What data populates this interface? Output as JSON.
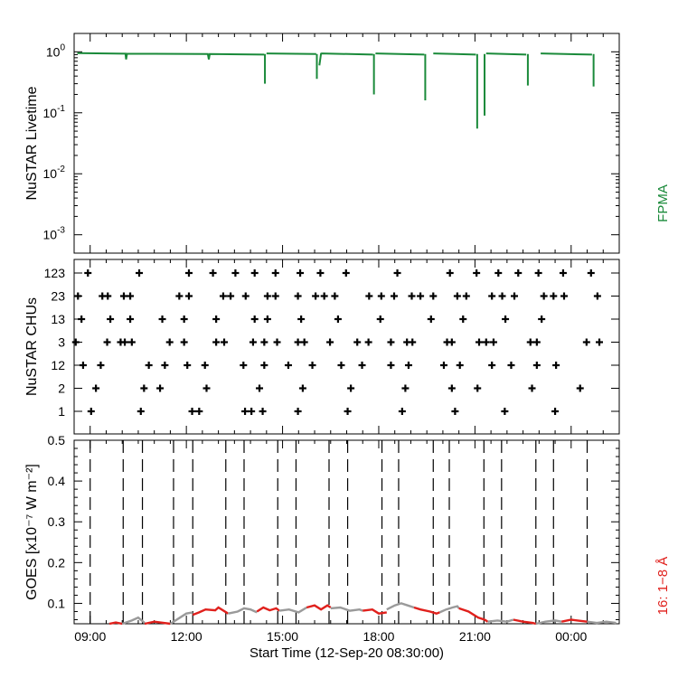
{
  "chart_data": [
    {
      "type": "line",
      "panel": "livetime",
      "ylabel": "NuSTAR Livetime",
      "yscale": "log",
      "ylim": [
        0.0005,
        2.0
      ],
      "ytick_values": [
        1,
        0.1,
        0.01,
        0.001
      ],
      "ytick_labels": [
        {
          "base": "10",
          "exp": "0"
        },
        {
          "base": "10",
          "exp": "-1"
        },
        {
          "base": "10",
          "exp": "-2"
        },
        {
          "base": "10",
          "exp": "-3"
        }
      ],
      "legend": "FPMA",
      "color": "#1a8a3a",
      "series": [
        {
          "x": [
            8.6,
            10.1,
            10.12,
            10.15,
            12.67,
            12.7,
            12.73,
            14.43
          ],
          "y": [
            0.95,
            0.93,
            0.75,
            0.93,
            0.92,
            0.75,
            0.92,
            0.9
          ]
        },
        {
          "x": [
            14.45
          ],
          "y": [
            0.3
          ]
        },
        {
          "x": [
            14.5,
            16.05
          ],
          "y": [
            0.94,
            0.92
          ]
        },
        {
          "x": [
            16.07
          ],
          "y": [
            0.36
          ]
        },
        {
          "x": [
            16.15,
            16.2,
            16.22,
            17.82
          ],
          "y": [
            0.6,
            0.93,
            0.94,
            0.9
          ]
        },
        {
          "x": [
            17.85
          ],
          "y": [
            0.2
          ]
        },
        {
          "x": [
            17.9,
            19.42
          ],
          "y": [
            0.94,
            0.9
          ]
        },
        {
          "x": [
            19.45
          ],
          "y": [
            0.16
          ]
        },
        {
          "x": [
            19.7,
            21.03
          ],
          "y": [
            0.94,
            0.9
          ]
        },
        {
          "x": [
            21.07
          ],
          "y": [
            0.055
          ]
        },
        {
          "x": [
            21.3
          ],
          "y": [
            0.09
          ]
        },
        {
          "x": [
            21.35,
            22.6
          ],
          "y": [
            0.94,
            0.9
          ]
        },
        {
          "x": [
            22.65
          ],
          "y": [
            0.28
          ]
        },
        {
          "x": [
            23.05,
            24.65
          ],
          "y": [
            0.94,
            0.9
          ]
        },
        {
          "x": [
            24.7
          ],
          "y": [
            0.27
          ]
        }
      ]
    },
    {
      "type": "scatter",
      "panel": "chus",
      "ylabel": "NuSTAR CHUs",
      "categories": [
        "1",
        "2",
        "12",
        "3",
        "13",
        "23",
        "123"
      ],
      "series": [
        {
          "name": "123",
          "x": [
            8.93,
            10.53,
            12.08,
            12.83,
            13.53,
            14.13,
            14.78,
            15.55,
            16.18,
            16.98,
            18.58,
            20.22,
            21.05,
            21.73,
            22.35,
            22.98,
            23.75,
            24.62
          ]
        },
        {
          "name": "23",
          "x": [
            8.62,
            9.38,
            9.55,
            10.05,
            10.25,
            11.78,
            12.08,
            13.15,
            13.38,
            13.85,
            14.53,
            14.78,
            15.48,
            16.03,
            16.3,
            16.63,
            17.7,
            18.08,
            18.48,
            19.03,
            19.3,
            19.7,
            20.45,
            20.73,
            21.53,
            21.85,
            22.23,
            23.15,
            23.45,
            23.78,
            24.82
          ]
        },
        {
          "name": "13",
          "x": [
            8.73,
            9.63,
            10.25,
            11.25,
            11.93,
            12.93,
            14.13,
            14.53,
            15.58,
            16.73,
            18.05,
            19.63,
            20.63,
            21.95,
            23.08
          ]
        },
        {
          "name": "3",
          "x": [
            8.55,
            9.53,
            9.95,
            10.08,
            10.3,
            11.48,
            11.93,
            12.93,
            13.18,
            14.08,
            14.43,
            14.83,
            15.48,
            15.68,
            16.48,
            17.33,
            17.68,
            18.38,
            18.88,
            19.05,
            20.13,
            20.28,
            21.13,
            21.35,
            21.58,
            22.73,
            22.93,
            24.48,
            24.88
          ]
        },
        {
          "name": "12",
          "x": [
            8.78,
            9.33,
            10.83,
            11.33,
            12.03,
            12.58,
            13.78,
            14.43,
            15.18,
            15.93,
            16.83,
            17.48,
            18.38,
            18.93,
            20.03,
            20.53,
            21.53,
            22.13,
            22.93,
            23.53
          ]
        },
        {
          "name": "2",
          "x": [
            9.18,
            10.68,
            11.18,
            12.63,
            14.28,
            15.63,
            17.13,
            18.83,
            20.28,
            21.08,
            22.78,
            24.28
          ]
        },
        {
          "name": "1",
          "x": [
            9.03,
            10.58,
            12.18,
            12.4,
            13.83,
            14.03,
            14.38,
            15.48,
            17.03,
            18.73,
            20.38,
            21.93,
            23.5
          ]
        }
      ]
    },
    {
      "type": "line",
      "panel": "goes",
      "ylabel": "GOES [x10⁻⁷ W m⁻²]",
      "ylim": [
        0.05,
        0.5
      ],
      "yticks": [
        0.1,
        0.2,
        0.3,
        0.4,
        0.5
      ],
      "ytick_labels": [
        "0.1",
        "0.2",
        "0.3",
        "0.4",
        "0.5"
      ],
      "legend": "16: 1−8 Å",
      "colors": {
        "nustar_on": "#e0201c",
        "nustar_off": "#9a9a9a"
      },
      "dashed_lines_x": [
        9.0,
        10.03,
        10.63,
        11.6,
        12.2,
        13.23,
        13.8,
        14.85,
        15.42,
        16.45,
        17.03,
        18.1,
        18.62,
        19.7,
        20.2,
        21.28,
        21.83,
        22.9,
        23.45,
        24.5
      ],
      "series": [
        {
          "name": "nustar_on",
          "x": [
            9.6,
            9.8,
            10.0
          ],
          "y": [
            0.05,
            0.053,
            0.05
          ]
        },
        {
          "name": "nustar_off",
          "x": [
            10.0,
            10.3,
            10.5,
            10.7
          ],
          "y": [
            0.05,
            0.058,
            0.065,
            0.052
          ]
        },
        {
          "name": "nustar_on",
          "x": [
            10.7,
            11.0,
            11.3,
            11.5
          ],
          "y": [
            0.05,
            0.055,
            0.052,
            0.05
          ]
        },
        {
          "name": "nustar_off",
          "x": [
            11.5,
            11.8,
            12.0,
            12.2
          ],
          "y": [
            0.05,
            0.065,
            0.075,
            0.078
          ]
        },
        {
          "name": "nustar_on",
          "x": [
            12.2,
            12.4,
            12.6,
            12.9,
            13.0,
            13.3
          ],
          "y": [
            0.072,
            0.078,
            0.085,
            0.083,
            0.09,
            0.075
          ]
        },
        {
          "name": "nustar_off",
          "x": [
            13.3,
            13.6,
            13.8,
            14.0,
            14.2
          ],
          "y": [
            0.075,
            0.08,
            0.088,
            0.085,
            0.078
          ]
        },
        {
          "name": "nustar_on",
          "x": [
            14.2,
            14.4,
            14.6,
            14.8,
            14.9
          ],
          "y": [
            0.08,
            0.09,
            0.083,
            0.088,
            0.082
          ]
        },
        {
          "name": "nustar_off",
          "x": [
            14.9,
            15.2,
            15.5,
            15.75
          ],
          "y": [
            0.082,
            0.085,
            0.078,
            0.09
          ]
        },
        {
          "name": "nustar_on",
          "x": [
            15.75,
            16.0,
            16.2,
            16.4,
            16.5
          ],
          "y": [
            0.09,
            0.095,
            0.085,
            0.095,
            0.09
          ]
        },
        {
          "name": "nustar_off",
          "x": [
            16.5,
            16.8,
            17.1,
            17.4,
            17.5
          ],
          "y": [
            0.088,
            0.09,
            0.082,
            0.085,
            0.082
          ]
        },
        {
          "name": "nustar_on",
          "x": [
            17.5,
            17.8,
            18.0,
            18.25
          ],
          "y": [
            0.082,
            0.085,
            0.075,
            0.078
          ]
        },
        {
          "name": "nustar_off",
          "x": [
            18.25,
            18.5,
            18.7,
            18.9,
            19.1
          ],
          "y": [
            0.085,
            0.095,
            0.1,
            0.095,
            0.09
          ]
        },
        {
          "name": "nustar_on",
          "x": [
            19.1,
            19.3,
            19.6,
            19.8,
            19.9
          ],
          "y": [
            0.09,
            0.085,
            0.08,
            0.075,
            0.078
          ]
        },
        {
          "name": "nustar_off",
          "x": [
            19.9,
            20.1,
            20.3,
            20.45,
            20.5
          ],
          "y": [
            0.078,
            0.085,
            0.09,
            0.093,
            0.088
          ]
        },
        {
          "name": "nustar_on",
          "x": [
            20.5,
            20.8,
            21.1,
            21.3,
            21.4
          ],
          "y": [
            0.088,
            0.08,
            0.065,
            0.06,
            0.055
          ]
        },
        {
          "name": "nustar_off",
          "x": [
            21.4,
            21.7,
            22.0,
            22.2
          ],
          "y": [
            0.055,
            0.058,
            0.055,
            0.06
          ]
        },
        {
          "name": "nustar_on",
          "x": [
            22.2,
            22.5,
            22.8,
            22.9
          ],
          "y": [
            0.06,
            0.055,
            0.052,
            0.05
          ]
        },
        {
          "name": "nustar_off",
          "x": [
            22.9,
            23.2,
            23.5,
            23.7
          ],
          "y": [
            0.05,
            0.055,
            0.058,
            0.055
          ]
        },
        {
          "name": "nustar_on",
          "x": [
            23.7,
            24.0,
            24.2,
            24.5
          ],
          "y": [
            0.055,
            0.06,
            0.058,
            0.055
          ]
        },
        {
          "name": "nustar_off",
          "x": [
            24.5,
            24.8,
            25.1,
            25.4
          ],
          "y": [
            0.055,
            0.052,
            0.055,
            0.052
          ]
        }
      ]
    }
  ],
  "xaxis": {
    "xlim": [
      8.5,
      25.5
    ],
    "ticks": [
      9,
      12,
      15,
      18,
      21,
      24
    ],
    "tick_labels": [
      "09:00",
      "12:00",
      "15:00",
      "18:00",
      "21:00",
      "00:00"
    ],
    "xlabel": "Start Time (12-Sep-20 08:30:00)"
  }
}
